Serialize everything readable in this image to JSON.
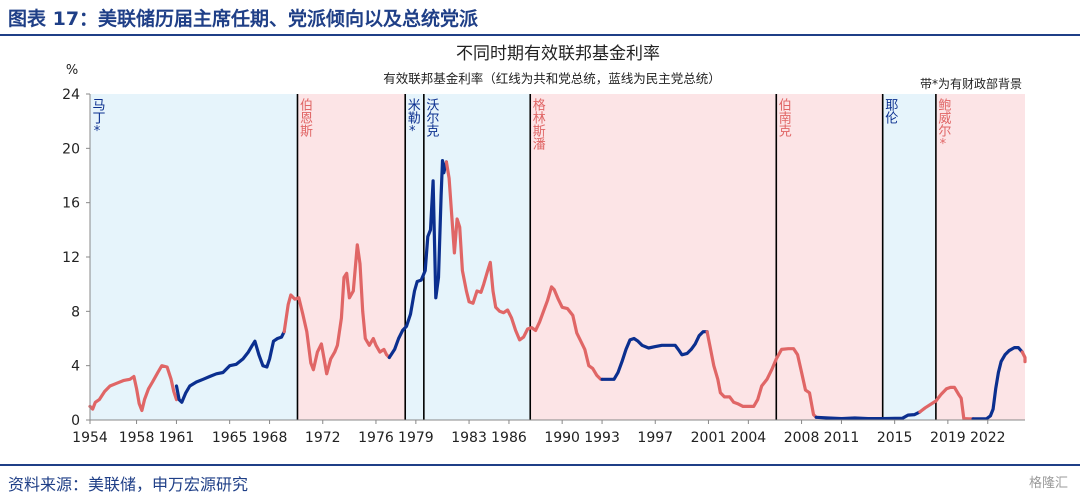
{
  "figure_title": "图表 17：美联储历届主席任期、党派倾向以及总统党派",
  "source": "资料来源：美联储，申万宏源研究",
  "watermark": "格隆汇",
  "colors": {
    "republican": "#e06666",
    "democrat": "#0b2f8f",
    "republican_bg": "#fce4e6",
    "democrat_bg": "#e6f4fb",
    "title_blue": "#1f3f87"
  },
  "chart_data": {
    "type": "line",
    "title": "不同时期有效联邦基金利率",
    "subtitle": "有效联邦基金利率（红线为共和党总统，蓝线为民主党总统）",
    "note": "带*为有财政部背景",
    "ylabel": "%",
    "xlim": [
      1954.5,
      2024.8
    ],
    "ylim": [
      0,
      24
    ],
    "yticks": [
      0,
      4,
      8,
      12,
      16,
      20,
      24
    ],
    "xticks": [
      1954,
      1958,
      1961,
      1965,
      1968,
      1972,
      1976,
      1979,
      1983,
      1986,
      1990,
      1993,
      1997,
      2001,
      2004,
      2008,
      2011,
      2015,
      2019,
      2022
    ],
    "chairs": [
      {
        "name": "马丁*",
        "start": 1954.5,
        "end": 1970.1,
        "party": "D"
      },
      {
        "name": "伯恩斯",
        "start": 1970.1,
        "end": 1978.2,
        "party": "R"
      },
      {
        "name": "米勒*",
        "start": 1978.2,
        "end": 1979.6,
        "party": "D"
      },
      {
        "name": "沃尔克",
        "start": 1979.6,
        "end": 1987.6,
        "party": "D"
      },
      {
        "name": "格林斯潘",
        "start": 1987.6,
        "end": 2006.1,
        "party": "R"
      },
      {
        "name": "伯南克",
        "start": 2006.1,
        "end": 2014.1,
        "party": "R"
      },
      {
        "name": "耶伦",
        "start": 2014.1,
        "end": 2018.1,
        "party": "D"
      },
      {
        "name": "鲍威尔*",
        "start": 2018.1,
        "end": 2024.8,
        "party": "R"
      }
    ],
    "series": [
      {
        "party": "R",
        "points": [
          [
            1954.5,
            1.0
          ],
          [
            1954.7,
            0.8
          ],
          [
            1954.9,
            1.3
          ],
          [
            1955.2,
            1.5
          ],
          [
            1955.6,
            2.1
          ],
          [
            1956.0,
            2.5
          ],
          [
            1956.5,
            2.7
          ],
          [
            1957.0,
            2.9
          ],
          [
            1957.5,
            3.0
          ],
          [
            1957.8,
            3.2
          ],
          [
            1958.0,
            2.3
          ],
          [
            1958.2,
            1.2
          ],
          [
            1958.4,
            0.7
          ],
          [
            1958.6,
            1.5
          ],
          [
            1958.9,
            2.3
          ],
          [
            1959.2,
            2.8
          ],
          [
            1959.6,
            3.5
          ],
          [
            1959.9,
            4.0
          ],
          [
            1960.3,
            3.9
          ],
          [
            1960.6,
            3.0
          ],
          [
            1960.8,
            2.1
          ],
          [
            1961.0,
            1.5
          ]
        ]
      },
      {
        "party": "D",
        "points": [
          [
            1961.0,
            2.5
          ],
          [
            1961.2,
            1.5
          ],
          [
            1961.4,
            1.3
          ],
          [
            1961.7,
            2.0
          ],
          [
            1962.0,
            2.5
          ],
          [
            1962.5,
            2.8
          ],
          [
            1963.0,
            3.0
          ],
          [
            1963.5,
            3.2
          ],
          [
            1964.0,
            3.4
          ],
          [
            1964.5,
            3.5
          ],
          [
            1965.0,
            4.0
          ],
          [
            1965.5,
            4.1
          ],
          [
            1966.0,
            4.5
          ],
          [
            1966.4,
            5.0
          ],
          [
            1966.7,
            5.5
          ],
          [
            1966.9,
            5.8
          ],
          [
            1967.2,
            4.8
          ],
          [
            1967.5,
            4.0
          ],
          [
            1967.8,
            3.9
          ],
          [
            1968.0,
            4.5
          ],
          [
            1968.3,
            5.8
          ],
          [
            1968.6,
            6.0
          ],
          [
            1968.9,
            6.1
          ],
          [
            1969.1,
            6.5
          ]
        ]
      },
      {
        "party": "R",
        "points": [
          [
            1969.1,
            6.5
          ],
          [
            1969.4,
            8.5
          ],
          [
            1969.6,
            9.2
          ],
          [
            1969.9,
            8.9
          ],
          [
            1970.2,
            9.0
          ],
          [
            1970.5,
            7.8
          ],
          [
            1970.8,
            6.5
          ],
          [
            1971.1,
            4.2
          ],
          [
            1971.3,
            3.7
          ],
          [
            1971.6,
            5.0
          ],
          [
            1971.9,
            5.6
          ],
          [
            1972.1,
            4.5
          ],
          [
            1972.3,
            3.4
          ],
          [
            1972.6,
            4.5
          ],
          [
            1972.9,
            5.0
          ],
          [
            1973.1,
            5.5
          ],
          [
            1973.4,
            7.5
          ],
          [
            1973.6,
            10.5
          ],
          [
            1973.8,
            10.8
          ],
          [
            1974.0,
            9.0
          ],
          [
            1974.3,
            9.5
          ],
          [
            1974.6,
            12.9
          ],
          [
            1974.8,
            11.5
          ],
          [
            1975.0,
            8.0
          ],
          [
            1975.2,
            6.0
          ],
          [
            1975.5,
            5.5
          ],
          [
            1975.8,
            6.0
          ],
          [
            1976.0,
            5.5
          ],
          [
            1976.3,
            5.0
          ],
          [
            1976.6,
            5.2
          ],
          [
            1976.8,
            4.8
          ],
          [
            1977.0,
            4.6
          ]
        ]
      },
      {
        "party": "D",
        "points": [
          [
            1977.0,
            4.6
          ],
          [
            1977.4,
            5.2
          ],
          [
            1977.7,
            6.0
          ],
          [
            1978.0,
            6.6
          ],
          [
            1978.3,
            6.9
          ],
          [
            1978.6,
            7.8
          ],
          [
            1978.9,
            9.5
          ],
          [
            1979.1,
            10.2
          ],
          [
            1979.4,
            10.3
          ],
          [
            1979.7,
            11.0
          ],
          [
            1979.9,
            13.5
          ],
          [
            1980.1,
            14.0
          ],
          [
            1980.3,
            17.6
          ],
          [
            1980.5,
            9.0
          ],
          [
            1980.7,
            10.5
          ],
          [
            1980.9,
            16.5
          ],
          [
            1981.0,
            19.1
          ],
          [
            1981.1,
            18.2
          ],
          [
            1981.3,
            19.0
          ]
        ]
      },
      {
        "party": "R",
        "points": [
          [
            1981.3,
            19.0
          ],
          [
            1981.5,
            17.8
          ],
          [
            1981.7,
            15.0
          ],
          [
            1981.9,
            12.3
          ],
          [
            1982.1,
            14.8
          ],
          [
            1982.3,
            14.2
          ],
          [
            1982.5,
            11.0
          ],
          [
            1982.8,
            9.5
          ],
          [
            1983.0,
            8.7
          ],
          [
            1983.3,
            8.6
          ],
          [
            1983.6,
            9.5
          ],
          [
            1983.9,
            9.4
          ],
          [
            1984.1,
            10.0
          ],
          [
            1984.4,
            11.0
          ],
          [
            1984.6,
            11.6
          ],
          [
            1984.8,
            9.5
          ],
          [
            1985.0,
            8.3
          ],
          [
            1985.3,
            8.0
          ],
          [
            1985.6,
            7.9
          ],
          [
            1985.9,
            8.1
          ],
          [
            1986.2,
            7.5
          ],
          [
            1986.5,
            6.6
          ],
          [
            1986.8,
            5.9
          ],
          [
            1987.1,
            6.1
          ],
          [
            1987.4,
            6.7
          ],
          [
            1987.7,
            6.8
          ],
          [
            1988.0,
            6.6
          ],
          [
            1988.3,
            7.2
          ],
          [
            1988.6,
            8.0
          ],
          [
            1988.9,
            8.8
          ],
          [
            1989.2,
            9.8
          ],
          [
            1989.4,
            9.6
          ],
          [
            1989.7,
            8.9
          ],
          [
            1990.0,
            8.3
          ],
          [
            1990.4,
            8.2
          ],
          [
            1990.8,
            7.7
          ],
          [
            1991.1,
            6.4
          ],
          [
            1991.4,
            5.8
          ],
          [
            1991.7,
            5.2
          ],
          [
            1992.0,
            4.0
          ],
          [
            1992.3,
            3.8
          ],
          [
            1992.6,
            3.3
          ],
          [
            1992.9,
            3.0
          ],
          [
            1993.0,
            3.0
          ]
        ]
      },
      {
        "party": "D",
        "points": [
          [
            1993.0,
            3.0
          ],
          [
            1993.5,
            3.0
          ],
          [
            1993.9,
            3.0
          ],
          [
            1994.2,
            3.5
          ],
          [
            1994.5,
            4.3
          ],
          [
            1994.8,
            5.2
          ],
          [
            1995.1,
            5.9
          ],
          [
            1995.4,
            6.0
          ],
          [
            1995.7,
            5.8
          ],
          [
            1996.0,
            5.5
          ],
          [
            1996.5,
            5.3
          ],
          [
            1997.0,
            5.4
          ],
          [
            1997.5,
            5.5
          ],
          [
            1998.0,
            5.5
          ],
          [
            1998.5,
            5.5
          ],
          [
            1998.8,
            5.1
          ],
          [
            1999.0,
            4.8
          ],
          [
            1999.4,
            4.9
          ],
          [
            1999.7,
            5.2
          ],
          [
            2000.0,
            5.6
          ],
          [
            2000.3,
            6.2
          ],
          [
            2000.6,
            6.5
          ],
          [
            2000.9,
            6.5
          ]
        ]
      },
      {
        "party": "R",
        "points": [
          [
            2000.9,
            6.5
          ],
          [
            2001.1,
            5.5
          ],
          [
            2001.4,
            4.0
          ],
          [
            2001.7,
            3.0
          ],
          [
            2001.9,
            2.0
          ],
          [
            2002.2,
            1.7
          ],
          [
            2002.6,
            1.7
          ],
          [
            2002.9,
            1.3
          ],
          [
            2003.2,
            1.2
          ],
          [
            2003.6,
            1.0
          ],
          [
            2004.0,
            1.0
          ],
          [
            2004.4,
            1.0
          ],
          [
            2004.7,
            1.5
          ],
          [
            2005.0,
            2.5
          ],
          [
            2005.4,
            3.0
          ],
          [
            2005.8,
            3.8
          ],
          [
            2006.1,
            4.5
          ],
          [
            2006.5,
            5.2
          ],
          [
            2007.0,
            5.25
          ],
          [
            2007.4,
            5.25
          ],
          [
            2007.7,
            4.8
          ],
          [
            2008.0,
            3.5
          ],
          [
            2008.3,
            2.2
          ],
          [
            2008.6,
            2.0
          ],
          [
            2008.9,
            0.4
          ],
          [
            2009.1,
            0.2
          ]
        ]
      },
      {
        "party": "D",
        "points": [
          [
            2009.1,
            0.2
          ],
          [
            2010.0,
            0.15
          ],
          [
            2011.0,
            0.1
          ],
          [
            2012.0,
            0.15
          ],
          [
            2013.0,
            0.1
          ],
          [
            2014.0,
            0.1
          ],
          [
            2015.0,
            0.12
          ],
          [
            2015.6,
            0.13
          ],
          [
            2016.0,
            0.36
          ],
          [
            2016.5,
            0.4
          ],
          [
            2016.9,
            0.6
          ]
        ]
      },
      {
        "party": "R",
        "points": [
          [
            2016.9,
            0.6
          ],
          [
            2017.3,
            0.9
          ],
          [
            2017.7,
            1.15
          ],
          [
            2018.1,
            1.4
          ],
          [
            2018.5,
            1.9
          ],
          [
            2018.9,
            2.3
          ],
          [
            2019.2,
            2.4
          ],
          [
            2019.5,
            2.4
          ],
          [
            2019.8,
            1.9
          ],
          [
            2020.0,
            1.6
          ],
          [
            2020.2,
            0.1
          ],
          [
            2020.6,
            0.09
          ],
          [
            2020.9,
            0.08
          ]
        ]
      },
      {
        "party": "D",
        "points": [
          [
            2020.9,
            0.08
          ],
          [
            2021.4,
            0.08
          ],
          [
            2021.9,
            0.08
          ],
          [
            2022.2,
            0.3
          ],
          [
            2022.4,
            0.8
          ],
          [
            2022.6,
            2.3
          ],
          [
            2022.8,
            3.5
          ],
          [
            2023.0,
            4.3
          ],
          [
            2023.3,
            4.8
          ],
          [
            2023.6,
            5.1
          ],
          [
            2024.0,
            5.33
          ],
          [
            2024.3,
            5.33
          ],
          [
            2024.6,
            5.0
          ]
        ]
      },
      {
        "party": "R",
        "points": [
          [
            2024.6,
            5.0
          ],
          [
            2024.8,
            4.6
          ],
          [
            2025.0,
            4.3
          ],
          [
            2025.3,
            4.33
          ]
        ]
      }
    ]
  }
}
